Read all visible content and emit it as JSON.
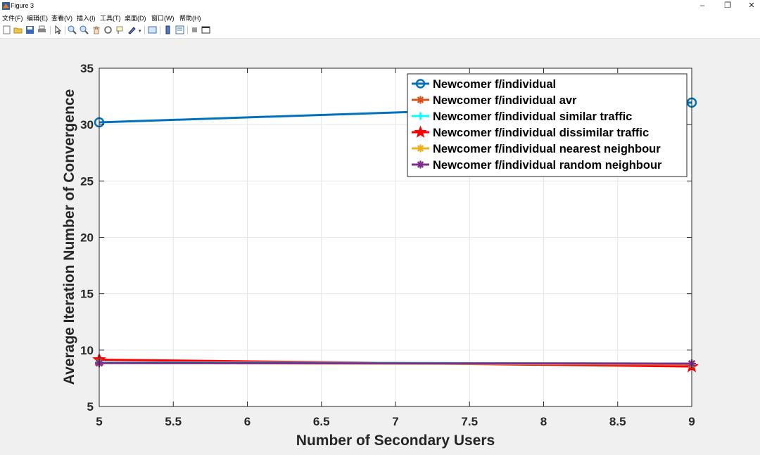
{
  "window": {
    "title": "Figure 3"
  },
  "menu": [
    "文件(F)",
    "编辑(E)",
    "查看(V)",
    "插入(I)",
    "工具(T)",
    "桌面(D)",
    "窗口(W)",
    "帮助(H)"
  ],
  "toolbar": [
    "new-figure-icon",
    "open-file-icon",
    "save-icon",
    "print-icon",
    "pointer-icon",
    "zoom-in-icon",
    "zoom-out-icon",
    "pan-icon",
    "rotate-3d-icon",
    "data-cursor-icon",
    "brush-icon",
    "link-plot-icon",
    "colorbar-icon",
    "legend-icon",
    "hide-tools-icon",
    "dock-icon"
  ],
  "colors": {
    "blue": "#0072bd",
    "orange": "#d95319",
    "cyan": "#00ffff",
    "red": "#ff0000",
    "yellow": "#edb120",
    "purple": "#7e2f8e"
  },
  "chart_data": {
    "type": "line",
    "xlabel": "Number of Secondary Users",
    "ylabel": "Average Iteration Number of Convergence",
    "xlim": [
      5,
      9
    ],
    "ylim": [
      5,
      35
    ],
    "xticks": [
      "5",
      "5.5",
      "6",
      "6.5",
      "7",
      "7.5",
      "8",
      "8.5",
      "9"
    ],
    "yticks": [
      "5",
      "10",
      "15",
      "20",
      "25",
      "30",
      "35"
    ],
    "grid": true,
    "legend_position": "top-right",
    "x": [
      5,
      9
    ],
    "series": [
      {
        "name": "Newcomer f/individual",
        "values": [
          30.2,
          31.95
        ],
        "color": "#0072bd",
        "marker": "circle"
      },
      {
        "name": "Newcomer f/individual avr",
        "values": [
          8.9,
          8.8
        ],
        "color": "#d95319",
        "marker": "asterisk"
      },
      {
        "name": "Newcomer f/individual similar traffic",
        "values": [
          8.9,
          8.8
        ],
        "color": "#00ffff",
        "marker": "plus"
      },
      {
        "name": "Newcomer f/individual dissimilar traffic",
        "values": [
          9.15,
          8.55
        ],
        "color": "#ff0000",
        "marker": "star"
      },
      {
        "name": "Newcomer f/individual nearest neighbour",
        "values": [
          8.85,
          8.75
        ],
        "color": "#edb120",
        "marker": "asterisk"
      },
      {
        "name": "Newcomer f/individual random neighbour",
        "values": [
          8.85,
          8.8
        ],
        "color": "#7e2f8e",
        "marker": "asterisk"
      }
    ]
  }
}
